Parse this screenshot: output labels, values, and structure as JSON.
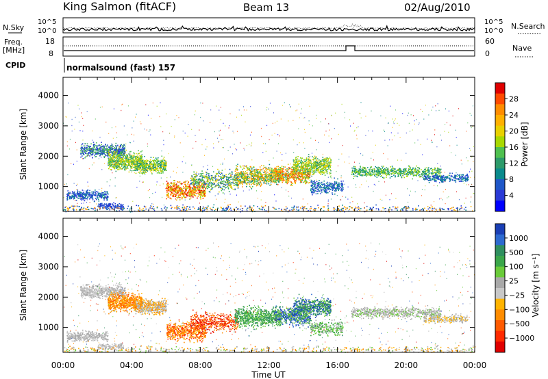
{
  "header": {
    "station": "King Salmon (fitACF)",
    "beam": "Beam 13",
    "date": "02/Aug/2010"
  },
  "top_panels": {
    "nsky_label": "N.Sky",
    "nsearch_label": "N.Search",
    "freq_label_1": "Freq.",
    "freq_label_2": "[MHz]",
    "nave_label": "Nave",
    "cpid_label": "CPID",
    "count_ticks": [
      "10^5",
      "10^0"
    ],
    "freq_ticks": [
      "18",
      "8"
    ],
    "nave_ticks": [
      "60",
      "0"
    ],
    "program": "normalsound (fast) 157"
  },
  "chart_data": [
    {
      "type": "heatmap",
      "panel": "power",
      "ylabel": "Slant Range [km]",
      "y_ticks": [
        "1000",
        "2000",
        "3000",
        "4000"
      ],
      "ylim": [
        180,
        4600
      ],
      "xlim": [
        0,
        24
      ],
      "colorbar_label": "Power [dB]",
      "colorbar_ticks": [
        "28",
        "24",
        "20",
        "16",
        "12",
        "8",
        "4"
      ],
      "colorbar_colors": [
        "#e00000",
        "#ff4a00",
        "#ff8c00",
        "#ffb000",
        "#e8d000",
        "#a8d800",
        "#4fc04f",
        "#2c9a6a",
        "#0a8a8c",
        "#1f57c8",
        "#2a3ad6",
        "#0000ff"
      ]
    },
    {
      "type": "heatmap",
      "panel": "velocity",
      "ylabel": "Slant Range [km]",
      "y_ticks": [
        "1000",
        "2000",
        "3000",
        "4000"
      ],
      "ylim": [
        180,
        4600
      ],
      "xlim": [
        0,
        24
      ],
      "xlabel": "Time UT",
      "x_ticks": [
        "00:00",
        "04:00",
        "08:00",
        "12:00",
        "16:00",
        "20:00",
        "00:00"
      ],
      "colorbar_label": "Velocity [m s⁻¹]",
      "colorbar_ticks": [
        "1000",
        "500",
        "100",
        "25",
        "−25",
        "−100",
        "−500",
        "−1000"
      ],
      "colorbar_colors": [
        "#1a3fb5",
        "#2d6ad0",
        "#2f8f5f",
        "#3aa64a",
        "#6acb3a",
        "#a9a9a9",
        "#c8c8c8",
        "#ffb300",
        "#ff8c00",
        "#ff5a00",
        "#ff2a00",
        "#e00000"
      ]
    }
  ]
}
